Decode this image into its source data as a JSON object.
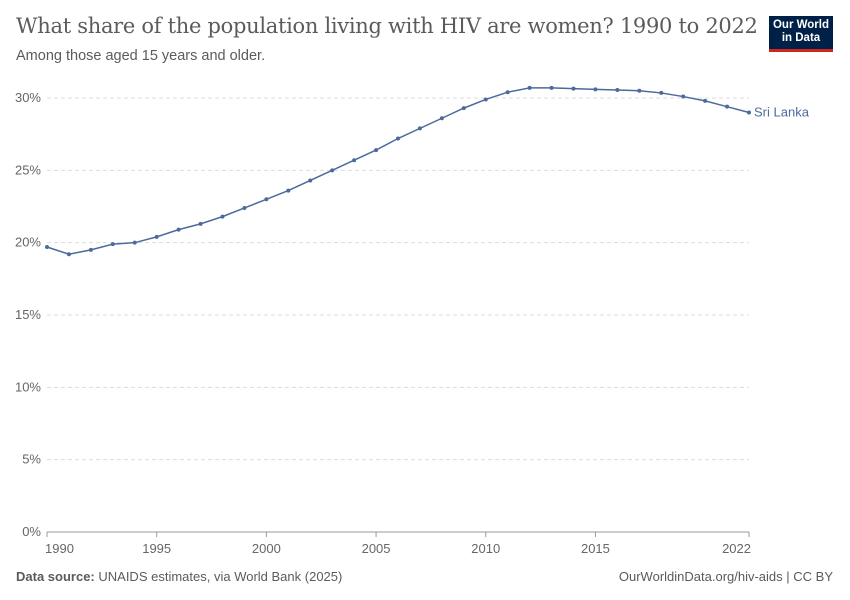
{
  "header": {
    "title": "What share of the population living with HIV are women? 1990 to 2022",
    "subtitle": "Among those aged 15 years and older.",
    "logo": "Our World in Data"
  },
  "footer": {
    "source_label": "Data source:",
    "source_text": "UNAIDS estimates, via World Bank (2025)",
    "right_text": "OurWorldinData.org/hiv-aids | CC BY"
  },
  "chart_data": {
    "type": "line",
    "title": "What share of the population living with HIV are women? 1990 to 2022",
    "xlim": [
      1990,
      2022
    ],
    "ylim": [
      0,
      30
    ],
    "x_ticks": [
      "1990",
      "1995",
      "2000",
      "2005",
      "2010",
      "2015",
      "2022"
    ],
    "y_ticks": [
      "0%",
      "5%",
      "10%",
      "15%",
      "20%",
      "25%",
      "30%"
    ],
    "grid": "horizontal dashed",
    "series": [
      {
        "name": "Sri Lanka",
        "color": "#4c6a9c",
        "x": [
          1990,
          1991,
          1992,
          1993,
          1994,
          1995,
          1996,
          1997,
          1998,
          1999,
          2000,
          2001,
          2002,
          2003,
          2004,
          2005,
          2006,
          2007,
          2008,
          2009,
          2010,
          2011,
          2012,
          2013,
          2014,
          2015,
          2016,
          2017,
          2018,
          2019,
          2020,
          2021,
          2022
        ],
        "y": [
          19.7,
          19.2,
          19.5,
          19.9,
          20.0,
          20.4,
          20.9,
          21.3,
          21.8,
          22.4,
          23.0,
          23.6,
          24.3,
          25.0,
          25.7,
          26.4,
          27.2,
          27.9,
          28.6,
          29.3,
          29.9,
          30.4,
          30.7,
          30.7,
          30.65,
          30.6,
          30.55,
          30.5,
          30.35,
          30.1,
          29.8,
          29.4,
          29.0
        ]
      }
    ]
  }
}
